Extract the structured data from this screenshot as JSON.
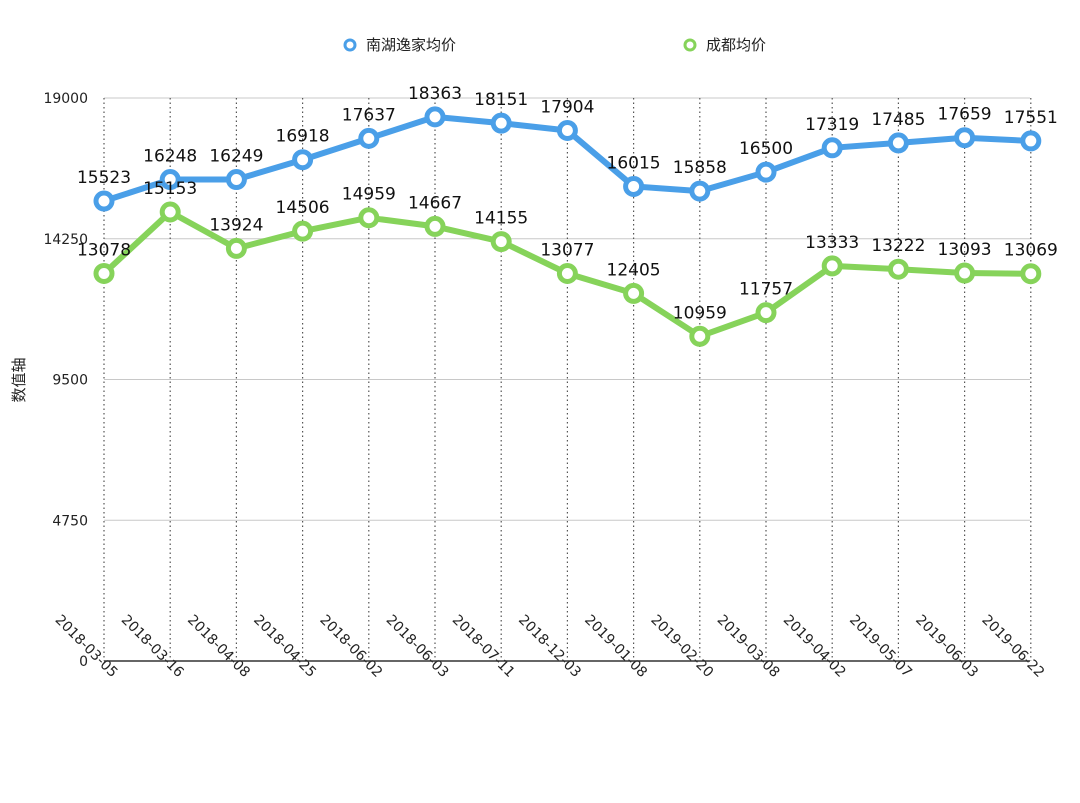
{
  "chart_data": {
    "type": "line",
    "title": "",
    "xlabel": "",
    "ylabel": "数值轴",
    "ylim": [
      0,
      19000
    ],
    "yticks": [
      0,
      4750,
      9500,
      14250,
      19000
    ],
    "grid": "horizontal solid, vertical dotted",
    "legend_position": "top-center",
    "categories": [
      "2018-03-05",
      "2018-03-16",
      "2018-04-08",
      "2018-04-25",
      "2018-06-02",
      "2018-06-03",
      "2018-07-11",
      "2018-12-03",
      "2019-01-08",
      "2019-02-20",
      "2019-03-08",
      "2019-04-02",
      "2019-05-07",
      "2019-06-03",
      "2019-06-22"
    ],
    "series": [
      {
        "name": "南湖逸家均价",
        "color": "#4a9fe8",
        "values": [
          15523,
          16248,
          16249,
          16918,
          17637,
          18363,
          18151,
          17904,
          16015,
          15858,
          16500,
          17319,
          17485,
          17659,
          17551
        ]
      },
      {
        "name": "成都均价",
        "color": "#86d35a",
        "values": [
          13078,
          15153,
          13924,
          14506,
          14959,
          14667,
          14155,
          13077,
          12405,
          10959,
          11757,
          13333,
          13222,
          13093,
          13069
        ]
      }
    ]
  }
}
